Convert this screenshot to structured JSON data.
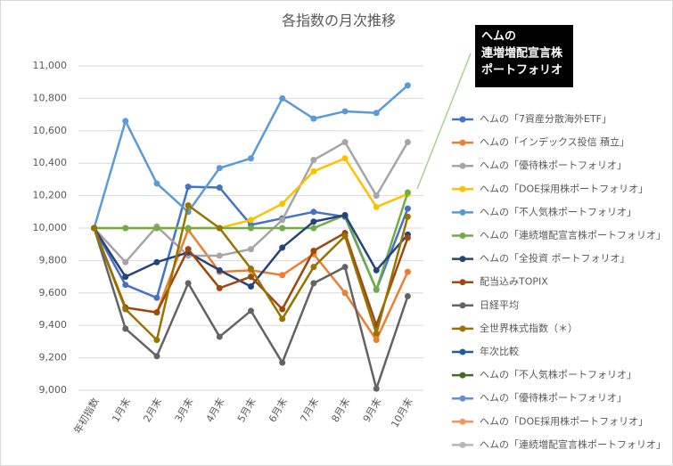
{
  "chart_data": {
    "type": "line",
    "title": "各指数の月次推移",
    "categories": [
      "年初指数",
      "1月末",
      "2月末",
      "3月末",
      "4月末",
      "5月末",
      "6月末",
      "7月末",
      "8月末",
      "9月末",
      "10月末"
    ],
    "ylim": [
      9000,
      11000
    ],
    "yticks": [
      {
        "value": 9000,
        "label": "9,000"
      },
      {
        "value": 9200,
        "label": "9,200"
      },
      {
        "value": 9400,
        "label": "9,400"
      },
      {
        "value": 9600,
        "label": "9,600"
      },
      {
        "value": 9800,
        "label": "9,800"
      },
      {
        "value": 10000,
        "label": "10,000"
      },
      {
        "value": 10200,
        "label": "10,200"
      },
      {
        "value": 10400,
        "label": "10,400"
      },
      {
        "value": 10600,
        "label": "10,600"
      },
      {
        "value": 10800,
        "label": "10,800"
      },
      {
        "value": 11000,
        "label": "11,000"
      }
    ],
    "grid": true,
    "annotation": [
      "ヘムの",
      "連増増配宣言株",
      "ポートフォリオ"
    ],
    "series": [
      {
        "name": "ヘムの「7資産分散海外ETF」",
        "color": "#4472c4",
        "values": [
          10000,
          9650,
          9570,
          10255,
          10250,
          10020,
          10060,
          10100,
          10070,
          9620,
          10120
        ]
      },
      {
        "name": "ヘムの「インデックス投信 積立」",
        "color": "#ed7d31",
        "values": [
          10000,
          9510,
          9480,
          9990,
          9730,
          9740,
          9710,
          9840,
          9600,
          9310,
          9730
        ]
      },
      {
        "name": "ヘムの「優待株ポートフォリオ」",
        "color": "#a5a5a5",
        "values": [
          10000,
          9790,
          10010,
          9830,
          9830,
          9870,
          10050,
          10420,
          10530,
          10200,
          10530
        ]
      },
      {
        "name": "ヘムの「DOE採用株ポートフォリオ」",
        "color": "#ffc000",
        "values": [
          10000,
          10000,
          10000,
          10000,
          10000,
          10050,
          10150,
          10350,
          10430,
          10130,
          10210
        ]
      },
      {
        "name": "ヘムの「不人気株ポートフォリオ」",
        "color": "#5b9bd5",
        "values": [
          10000,
          10660,
          10275,
          10100,
          10370,
          10430,
          10800,
          10675,
          10720,
          10710,
          10880
        ]
      },
      {
        "name": "ヘムの「連続増配宣言株ポートフォリオ」",
        "color": "#70ad47",
        "values": [
          10000,
          10000,
          10000,
          10000,
          10000,
          10000,
          10000,
          10000,
          10080,
          9620,
          10220
        ]
      },
      {
        "name": "ヘムの「全投資 ポートフォリオ」",
        "color": "#264478",
        "values": [
          10000,
          9700,
          9790,
          9850,
          9740,
          9640,
          9880,
          10040,
          10080,
          9740,
          9960
        ]
      },
      {
        "name": "配当込みTOPIX",
        "color": "#9e480e",
        "values": [
          10000,
          9510,
          9480,
          9870,
          9630,
          9700,
          9500,
          9860,
          9970,
          9400,
          9940
        ]
      },
      {
        "name": "日経平均",
        "color": "#636363",
        "values": [
          10000,
          9380,
          9210,
          9660,
          9330,
          9490,
          9170,
          9660,
          9760,
          9010,
          9580
        ]
      },
      {
        "name": "全世界株式指数（＊）",
        "color": "#997300",
        "values": [
          10000,
          9500,
          9310,
          10140,
          10000,
          9750,
          9440,
          9760,
          9950,
          9350,
          10070
        ]
      },
      {
        "name": "年次比較",
        "color": "#255e91",
        "values": [
          null,
          null,
          null,
          null,
          null,
          null,
          null,
          null,
          null,
          null,
          null
        ]
      },
      {
        "name": "ヘムの「不人気株ポートフォリオ」",
        "color": "#43682b",
        "values": [
          null,
          null,
          null,
          null,
          null,
          null,
          null,
          null,
          null,
          null,
          null
        ]
      },
      {
        "name": "ヘムの「優待株ポートフォリオ」",
        "color": "#698ed0",
        "values": [
          null,
          null,
          null,
          null,
          null,
          null,
          null,
          null,
          null,
          null,
          null
        ]
      },
      {
        "name": "ヘムの「DOE採用株ポートフォリオ」",
        "color": "#f1975a",
        "values": [
          null,
          null,
          null,
          null,
          null,
          null,
          null,
          null,
          null,
          null,
          null
        ]
      },
      {
        "name": "ヘムの「連続増配宣言株ポートフォリオ」",
        "color": "#b7b7b7",
        "values": [
          null,
          null,
          null,
          null,
          null,
          null,
          null,
          null,
          null,
          null,
          null
        ]
      }
    ]
  }
}
